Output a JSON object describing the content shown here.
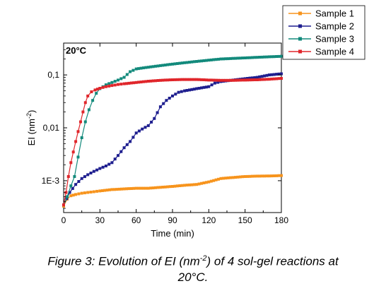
{
  "chart_data": {
    "type": "scatter",
    "panel_label": "20°C",
    "xlabel": "Time (min)",
    "ylabel": "EI (nm",
    "ylabel_exp": "-2",
    "ylabel_close": ")",
    "x_ticks": [
      "0",
      "30",
      "60",
      "90",
      "120",
      "150",
      "180"
    ],
    "x_tick_values": [
      0,
      30,
      60,
      90,
      120,
      150,
      180
    ],
    "y_ticks": [
      "1E-3",
      "0,01",
      "0,1"
    ],
    "y_tick_values": [
      0.001,
      0.01,
      0.1
    ],
    "xlim": [
      0,
      180
    ],
    "ylim": [
      0.00025,
      0.4
    ],
    "y_scale": "log",
    "grid": false,
    "legend_position": "outside-top-right",
    "series": [
      {
        "name": "Sample 1",
        "color": "#f7941d",
        "points": [
          [
            0,
            0.00033
          ],
          [
            3,
            0.00045
          ],
          [
            6,
            0.00052
          ],
          [
            10,
            0.00055
          ],
          [
            15,
            0.00058
          ],
          [
            20,
            0.0006
          ],
          [
            25,
            0.00062
          ],
          [
            30,
            0.00064
          ],
          [
            40,
            0.00068
          ],
          [
            50,
            0.0007
          ],
          [
            60,
            0.00072
          ],
          [
            70,
            0.00072
          ],
          [
            80,
            0.00075
          ],
          [
            90,
            0.00078
          ],
          [
            100,
            0.00082
          ],
          [
            110,
            0.00085
          ],
          [
            120,
            0.00095
          ],
          [
            130,
            0.0011
          ],
          [
            140,
            0.00115
          ],
          [
            150,
            0.0012
          ],
          [
            160,
            0.00122
          ],
          [
            170,
            0.00123
          ],
          [
            180,
            0.00125
          ]
        ]
      },
      {
        "name": "Sample 2",
        "color": "#1f1f8f",
        "points": [
          [
            0,
            0.00035
          ],
          [
            5,
            0.0006
          ],
          [
            10,
            0.00085
          ],
          [
            15,
            0.0011
          ],
          [
            20,
            0.0013
          ],
          [
            25,
            0.0015
          ],
          [
            30,
            0.0017
          ],
          [
            35,
            0.0019
          ],
          [
            40,
            0.0022
          ],
          [
            45,
            0.003
          ],
          [
            50,
            0.0042
          ],
          [
            55,
            0.0055
          ],
          [
            60,
            0.008
          ],
          [
            65,
            0.0095
          ],
          [
            70,
            0.011
          ],
          [
            75,
            0.015
          ],
          [
            80,
            0.025
          ],
          [
            85,
            0.033
          ],
          [
            90,
            0.04
          ],
          [
            95,
            0.047
          ],
          [
            100,
            0.05
          ],
          [
            110,
            0.055
          ],
          [
            120,
            0.06
          ],
          [
            125,
            0.07
          ],
          [
            130,
            0.075
          ],
          [
            140,
            0.08
          ],
          [
            150,
            0.085
          ],
          [
            160,
            0.09
          ],
          [
            170,
            0.1
          ],
          [
            180,
            0.105
          ]
        ]
      },
      {
        "name": "Sample 3",
        "color": "#138a7c",
        "points": [
          [
            0,
            0.00035
          ],
          [
            3,
            0.0005
          ],
          [
            6,
            0.0008
          ],
          [
            9,
            0.0012
          ],
          [
            12,
            0.0028
          ],
          [
            15,
            0.0065
          ],
          [
            18,
            0.013
          ],
          [
            21,
            0.022
          ],
          [
            24,
            0.033
          ],
          [
            27,
            0.045
          ],
          [
            30,
            0.055
          ],
          [
            35,
            0.065
          ],
          [
            40,
            0.072
          ],
          [
            45,
            0.08
          ],
          [
            50,
            0.09
          ],
          [
            55,
            0.115
          ],
          [
            60,
            0.13
          ],
          [
            70,
            0.14
          ],
          [
            80,
            0.15
          ],
          [
            90,
            0.16
          ],
          [
            100,
            0.17
          ],
          [
            110,
            0.18
          ],
          [
            120,
            0.19
          ],
          [
            130,
            0.2
          ],
          [
            140,
            0.205
          ],
          [
            150,
            0.21
          ],
          [
            160,
            0.215
          ],
          [
            170,
            0.22
          ],
          [
            180,
            0.225
          ]
        ]
      },
      {
        "name": "Sample 4",
        "color": "#e0262b",
        "points": [
          [
            0,
            0.00035
          ],
          [
            2,
            0.0006
          ],
          [
            4,
            0.0012
          ],
          [
            6,
            0.0022
          ],
          [
            8,
            0.0035
          ],
          [
            10,
            0.0055
          ],
          [
            12,
            0.0085
          ],
          [
            14,
            0.013
          ],
          [
            16,
            0.02
          ],
          [
            18,
            0.03
          ],
          [
            20,
            0.04
          ],
          [
            23,
            0.048
          ],
          [
            26,
            0.052
          ],
          [
            30,
            0.056
          ],
          [
            35,
            0.06
          ],
          [
            40,
            0.063
          ],
          [
            45,
            0.066
          ],
          [
            50,
            0.068
          ],
          [
            60,
            0.072
          ],
          [
            70,
            0.076
          ],
          [
            80,
            0.079
          ],
          [
            90,
            0.081
          ],
          [
            100,
            0.082
          ],
          [
            110,
            0.082
          ],
          [
            120,
            0.08
          ],
          [
            130,
            0.079
          ],
          [
            140,
            0.079
          ],
          [
            150,
            0.08
          ],
          [
            160,
            0.081
          ],
          [
            170,
            0.083
          ],
          [
            180,
            0.086
          ]
        ]
      }
    ]
  },
  "caption": {
    "prefix": "Figure 3: Evolution of EI (nm",
    "sup": "-2",
    "suffix": ") of 4 sol-gel reactions at",
    "line2": "20°C."
  }
}
